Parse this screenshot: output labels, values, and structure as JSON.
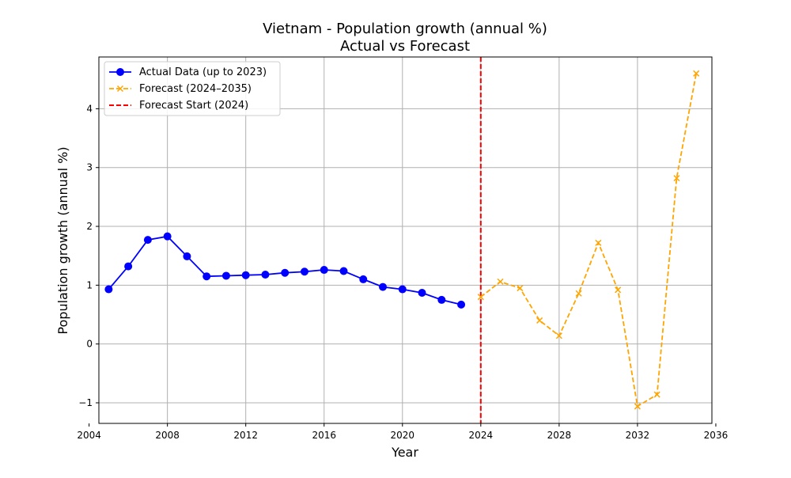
{
  "chart_data": {
    "type": "line",
    "title": "Vietnam - Population growth (annual %)",
    "subtitle": "Actual vs Forecast",
    "xlabel": "Year",
    "ylabel": "Population growth (annual %)",
    "xlim": [
      2004.5,
      2035.8
    ],
    "ylim": [
      -1.35,
      4.88
    ],
    "xticks": [
      2004,
      2008,
      2012,
      2016,
      2020,
      2024,
      2028,
      2032,
      2036
    ],
    "yticks": [
      -1,
      0,
      1,
      2,
      3,
      4
    ],
    "ytick_labels": [
      "−1",
      "0",
      "1",
      "2",
      "3",
      "4"
    ],
    "grid": true,
    "legend_position": "top-left",
    "series": [
      {
        "name": "Actual Data (up to 2023)",
        "color": "#0000ff",
        "line_style": "solid",
        "marker": "circle",
        "x": [
          2005,
          2006,
          2007,
          2008,
          2009,
          2010,
          2011,
          2012,
          2013,
          2014,
          2015,
          2016,
          2017,
          2018,
          2019,
          2020,
          2021,
          2022,
          2023
        ],
        "y": [
          0.93,
          1.32,
          1.77,
          1.83,
          1.49,
          1.15,
          1.16,
          1.17,
          1.18,
          1.21,
          1.23,
          1.26,
          1.24,
          1.1,
          0.97,
          0.93,
          0.87,
          0.75,
          0.67
        ]
      },
      {
        "name": "Forecast (2024–2035)",
        "color": "#ffa500",
        "line_style": "dashed",
        "marker": "x",
        "x": [
          2024,
          2025,
          2026,
          2027,
          2028,
          2029,
          2030,
          2031,
          2032,
          2033,
          2034,
          2035
        ],
        "y": [
          0.8,
          1.06,
          0.95,
          0.4,
          0.14,
          0.86,
          1.72,
          0.92,
          -1.06,
          -0.86,
          2.82,
          4.6
        ]
      }
    ],
    "reference_lines": [
      {
        "name": "Forecast Start (2024)",
        "x": 2024,
        "color": "#ff0000",
        "line_style": "dashed"
      }
    ]
  }
}
